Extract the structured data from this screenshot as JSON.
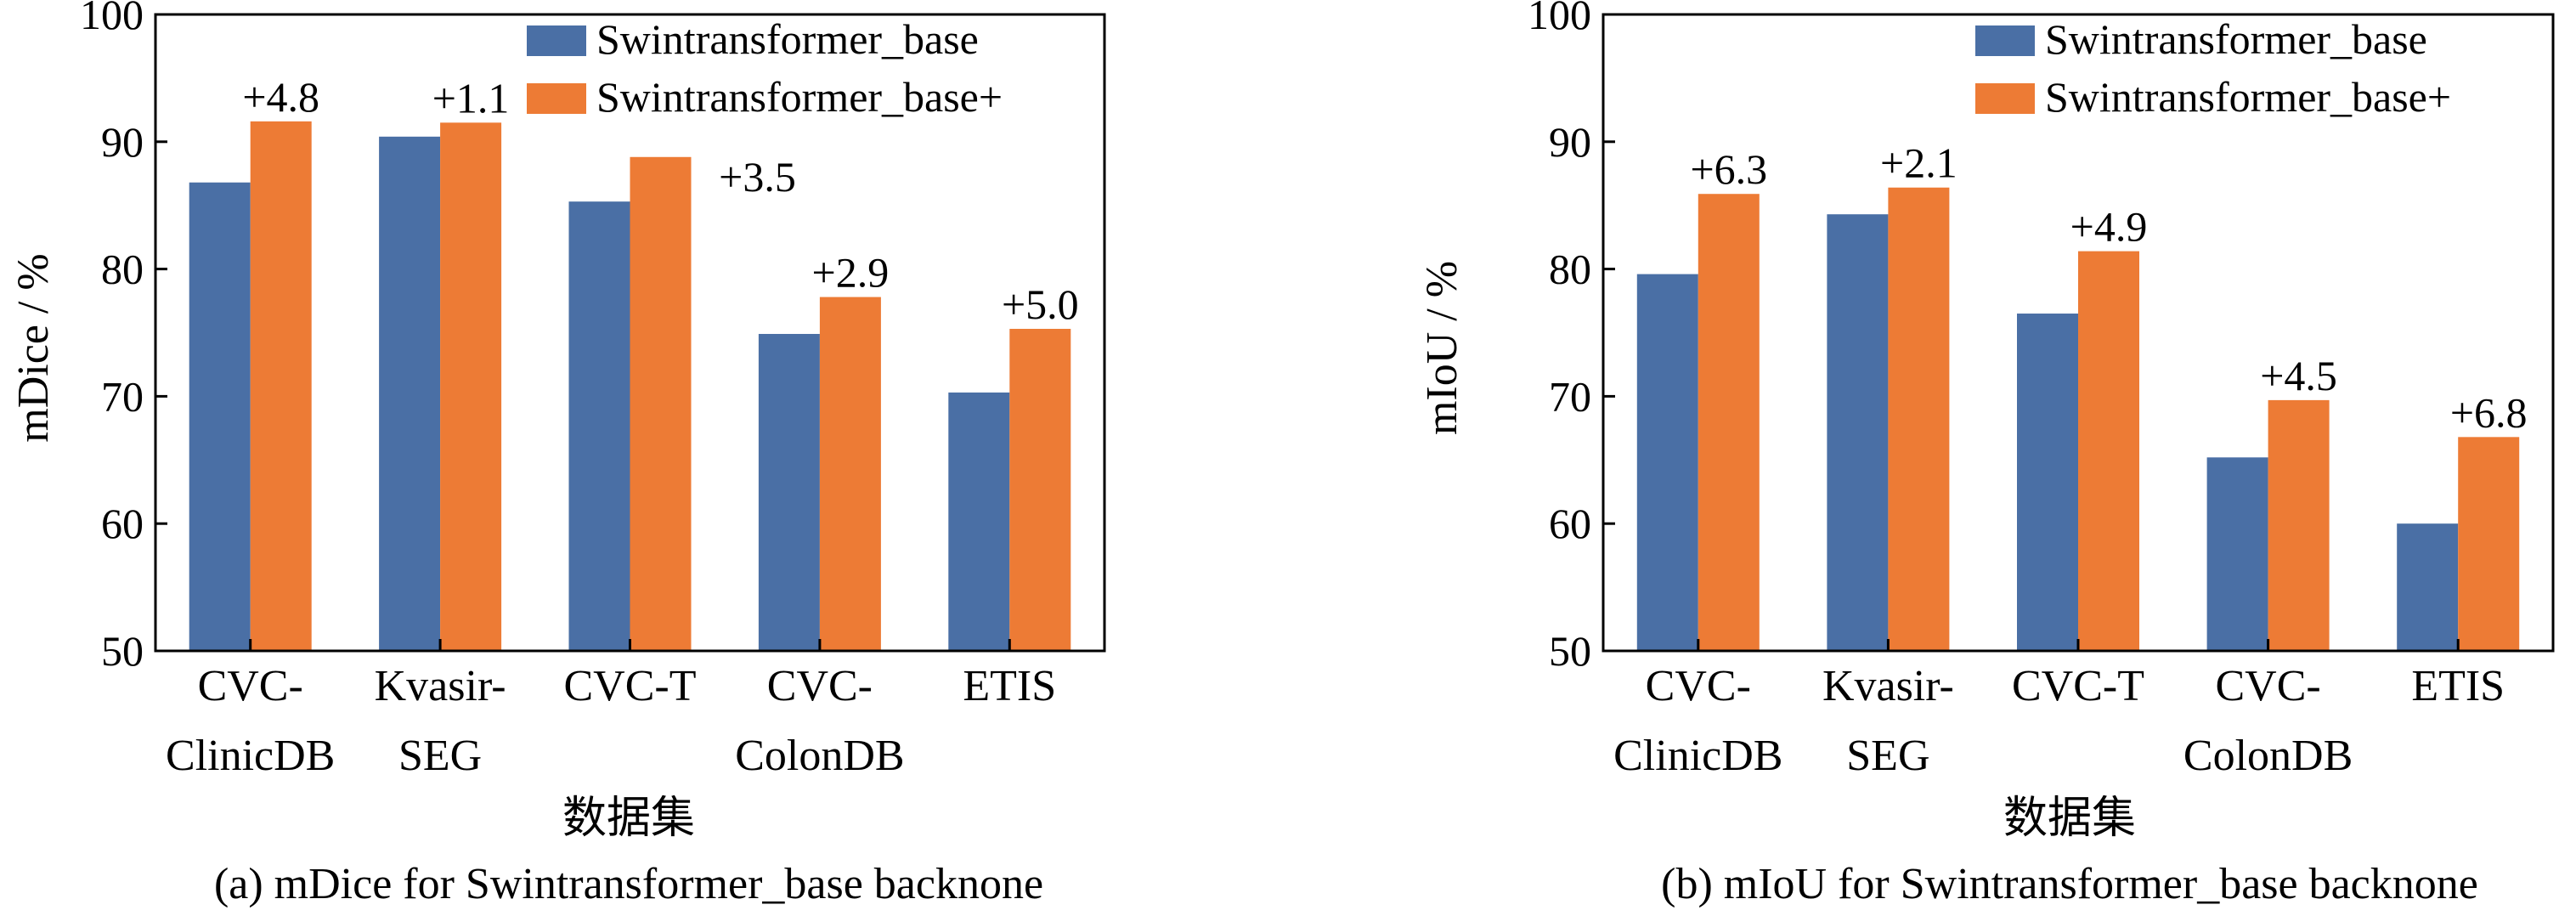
{
  "colors": {
    "series_base": "#4a6fa5",
    "series_plus": "#ed7b35",
    "axis": "#000000"
  },
  "chart_data": [
    {
      "type": "bar",
      "caption": "(a) mDice for Swintransformer_base backnone",
      "xlabel": "数据集",
      "ylabel": "mDice / %",
      "ylim": [
        50,
        100
      ],
      "yticks": [
        50,
        60,
        70,
        80,
        90,
        100
      ],
      "categories": [
        [
          "CVC-",
          "ClinicDB"
        ],
        [
          "Kvasir-",
          "SEG"
        ],
        [
          "CVC-T"
        ],
        [
          "CVC-",
          "ColonDB"
        ],
        [
          "ETIS"
        ]
      ],
      "series": [
        {
          "name": "Swintransformer_base",
          "values": [
            86.8,
            90.4,
            85.3,
            74.9,
            70.3
          ]
        },
        {
          "name": "Swintransformer_base+",
          "values": [
            91.6,
            91.5,
            88.8,
            77.8,
            75.3
          ]
        }
      ],
      "annotations": [
        "+4.8",
        "+1.1",
        "+3.5",
        "+2.9",
        "+5.0"
      ],
      "legend": "top-right",
      "grid": false
    },
    {
      "type": "bar",
      "caption": "(b) mIoU for Swintransformer_base backnone",
      "xlabel": "数据集",
      "ylabel": "mIoU / %",
      "ylim": [
        50,
        100
      ],
      "yticks": [
        50,
        60,
        70,
        80,
        90,
        100
      ],
      "categories": [
        [
          "CVC-",
          "ClinicDB"
        ],
        [
          "Kvasir-",
          "SEG"
        ],
        [
          "CVC-T"
        ],
        [
          "CVC-",
          "ColonDB"
        ],
        [
          "ETIS"
        ]
      ],
      "series": [
        {
          "name": "Swintransformer_base",
          "values": [
            79.6,
            84.3,
            76.5,
            65.2,
            60.0
          ]
        },
        {
          "name": "Swintransformer_base+",
          "values": [
            85.9,
            86.4,
            81.4,
            69.7,
            66.8
          ]
        }
      ],
      "annotations": [
        "+6.3",
        "+2.1",
        "+4.9",
        "+4.5",
        "+6.8"
      ],
      "legend": "top-right",
      "grid": false
    }
  ]
}
